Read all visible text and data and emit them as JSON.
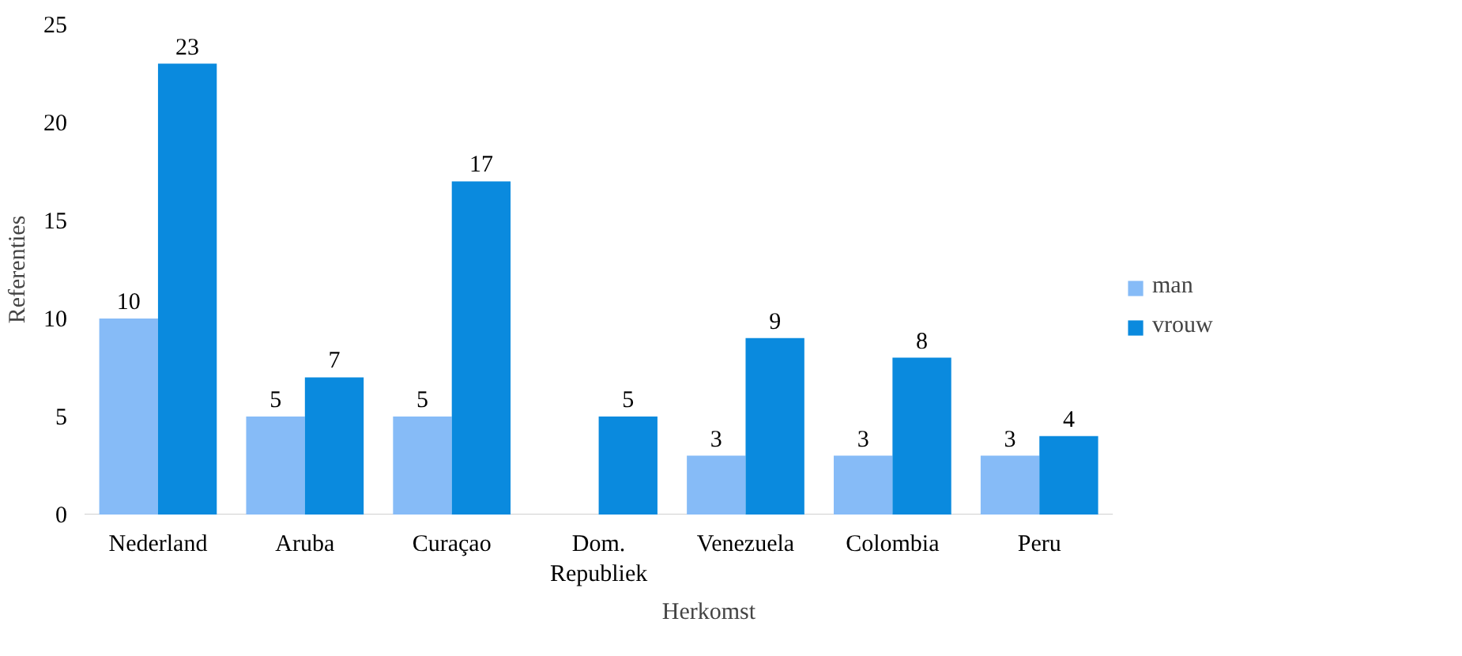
{
  "chart_data": {
    "type": "bar",
    "xlabel": "Herkomst",
    "ylabel": "Referenties",
    "categories": [
      "Nederland",
      "Aruba",
      "Curaçao",
      "Dom. Republiek",
      "Venezuela",
      "Colombia",
      "Peru"
    ],
    "series": [
      {
        "name": "man",
        "color": "#86bbf7",
        "values": [
          10,
          5,
          5,
          null,
          3,
          3,
          3
        ]
      },
      {
        "name": "vrouw",
        "color": "#0a8ade",
        "values": [
          23,
          7,
          17,
          5,
          9,
          8,
          4
        ]
      }
    ],
    "ylim": [
      0,
      25
    ],
    "yticks": [
      0,
      5,
      10,
      15,
      20,
      25
    ],
    "grid": false,
    "legend": "right",
    "data_labels": true
  }
}
